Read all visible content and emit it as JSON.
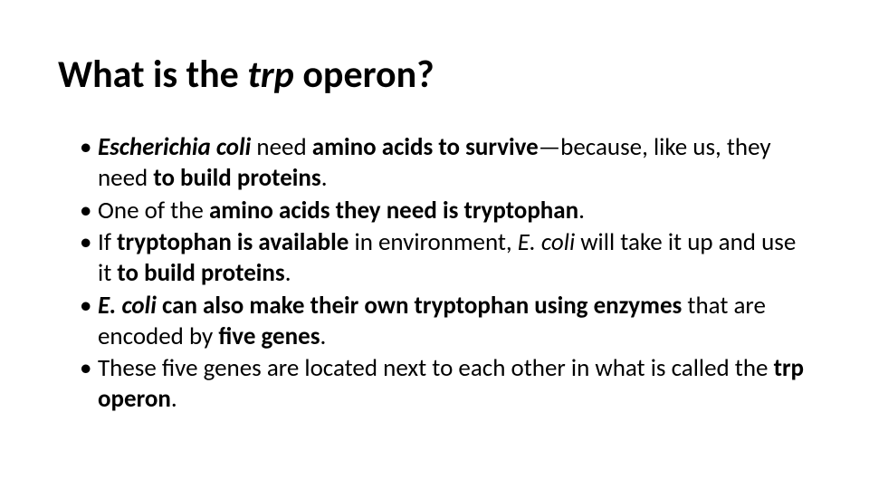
{
  "title": {
    "pre": "What is the ",
    "italic": "trp ",
    "post": "operon?",
    "fontsize": 42,
    "color": "#000000"
  },
  "bullets": [
    {
      "runs": [
        {
          "t": "Escherichia coli",
          "style": "bi"
        },
        {
          "t": "  need ",
          "style": ""
        },
        {
          "t": "amino acids to survive",
          "style": "b"
        },
        {
          "t": "—because, like us, they need ",
          "style": ""
        },
        {
          "t": "to build proteins",
          "style": "b"
        },
        {
          "t": ".",
          "style": ""
        }
      ]
    },
    {
      "runs": [
        {
          "t": "One of the ",
          "style": ""
        },
        {
          "t": "amino acids they need is tryptophan",
          "style": "b"
        },
        {
          "t": ".",
          "style": ""
        }
      ]
    },
    {
      "runs": [
        {
          "t": "If ",
          "style": ""
        },
        {
          "t": "tryptophan is available",
          "style": "b"
        },
        {
          "t": " in environment, ",
          "style": ""
        },
        {
          "t": "E. coli",
          "style": "i"
        },
        {
          "t": " will take it up and use it ",
          "style": ""
        },
        {
          "t": "to build proteins",
          "style": "b"
        },
        {
          "t": ".",
          "style": ""
        }
      ]
    },
    {
      "runs": [
        {
          "t": "E. coli",
          "style": "bi"
        },
        {
          "t": " can also make their own tryptophan using enzymes",
          "style": "b"
        },
        {
          "t": " that are encoded by ",
          "style": ""
        },
        {
          "t": "five genes",
          "style": "b"
        },
        {
          "t": ".",
          "style": ""
        }
      ]
    },
    {
      "runs": [
        {
          "t": " These five genes are located next to each other in what is called the ",
          "style": ""
        },
        {
          "t": "trp",
          "style": "b"
        },
        {
          "t": " ",
          "style": ""
        },
        {
          "t": "operon",
          "style": "b"
        },
        {
          "t": ".",
          "style": ""
        }
      ]
    }
  ],
  "body_fontsize": 27,
  "background": "#ffffff",
  "text_color": "#000000"
}
